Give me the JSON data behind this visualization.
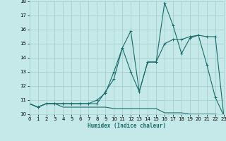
{
  "xlabel": "Humidex (Indice chaleur)",
  "bg_color": "#c5e8e8",
  "grid_color": "#a8d0d0",
  "line_color": "#1a6b6b",
  "x_min": 0,
  "x_max": 23,
  "y_min": 10,
  "y_max": 18,
  "x_ticks": [
    0,
    1,
    2,
    3,
    4,
    5,
    6,
    7,
    8,
    9,
    10,
    11,
    12,
    13,
    14,
    15,
    16,
    17,
    18,
    19,
    20,
    21,
    22,
    23
  ],
  "y_ticks": [
    10,
    11,
    12,
    13,
    14,
    15,
    16,
    17,
    18
  ],
  "series1_x": [
    0,
    1,
    2,
    3,
    4,
    5,
    6,
    7,
    8,
    9,
    10,
    11,
    12,
    13,
    14,
    15,
    16,
    17,
    18,
    19,
    20,
    21,
    22,
    23
  ],
  "series1_y": [
    10.75,
    10.5,
    10.75,
    10.75,
    10.5,
    10.5,
    10.5,
    10.5,
    10.5,
    10.5,
    10.4,
    10.4,
    10.4,
    10.4,
    10.4,
    10.4,
    10.1,
    10.1,
    10.1,
    10.0,
    10.0,
    10.0,
    10.0,
    9.9
  ],
  "series2_x": [
    0,
    1,
    2,
    3,
    4,
    5,
    6,
    7,
    8,
    9,
    10,
    11,
    12,
    13,
    14,
    15,
    16,
    17,
    18,
    19,
    20,
    21,
    22,
    23
  ],
  "series2_y": [
    10.75,
    10.5,
    10.75,
    10.75,
    10.75,
    10.75,
    10.75,
    10.75,
    11.0,
    11.5,
    13.0,
    14.7,
    13.0,
    11.6,
    13.7,
    13.7,
    15.0,
    15.3,
    15.3,
    15.5,
    15.6,
    15.5,
    15.5,
    9.9
  ],
  "series3_x": [
    0,
    1,
    2,
    3,
    4,
    5,
    6,
    7,
    8,
    9,
    10,
    11,
    12,
    13,
    14,
    15,
    16,
    17,
    18,
    19,
    20,
    21,
    22,
    23
  ],
  "series3_y": [
    10.75,
    10.5,
    10.75,
    10.75,
    10.75,
    10.75,
    10.75,
    10.75,
    10.75,
    11.6,
    12.5,
    14.7,
    15.9,
    11.6,
    13.7,
    13.7,
    17.9,
    16.3,
    14.3,
    15.4,
    15.6,
    13.5,
    11.2,
    9.9
  ]
}
